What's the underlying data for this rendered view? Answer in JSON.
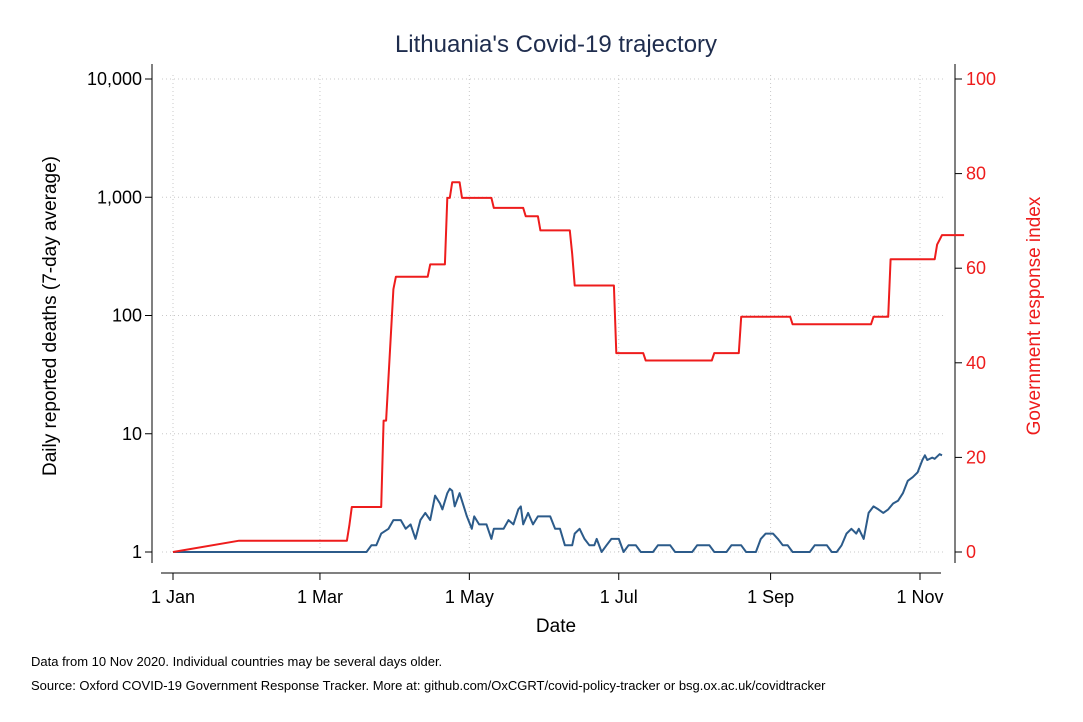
{
  "chart_data": {
    "type": "line",
    "title": "Lithuania's Covid-19 trajectory",
    "xlabel": "Date",
    "ylabel": "Daily reported deaths (7-day average)",
    "y2label": "Government response index",
    "x_ticks": [
      "1 Jan",
      "1 Mar",
      "1 May",
      "1 Jul",
      "1 Sep",
      "1 Nov"
    ],
    "y_ticks": [
      "1",
      "10",
      "100",
      "1,000",
      "10,000"
    ],
    "y2_ticks": [
      "0",
      "20",
      "40",
      "60",
      "80",
      "100"
    ],
    "xlim": [
      "2020-01-01",
      "2020-11-16"
    ],
    "ylim": [
      1,
      10000
    ],
    "ylog": true,
    "y2lim": [
      0,
      100
    ],
    "grid": true,
    "colors": {
      "deaths": "#2c5b8a",
      "response": "#ee1c1c",
      "title": "#1f2d4e"
    },
    "series": [
      {
        "axis": "left",
        "step": false,
        "points": [
          [
            "2020-01-01",
            1
          ],
          [
            "2020-03-20",
            1
          ],
          [
            "2020-03-22",
            1.14
          ],
          [
            "2020-03-24",
            1.14
          ],
          [
            "2020-03-26",
            1.43
          ],
          [
            "2020-03-29",
            1.57
          ],
          [
            "2020-03-31",
            1.86
          ],
          [
            "2020-04-03",
            1.86
          ],
          [
            "2020-04-05",
            1.57
          ],
          [
            "2020-04-07",
            1.71
          ],
          [
            "2020-04-09",
            1.29
          ],
          [
            "2020-04-11",
            1.86
          ],
          [
            "2020-04-13",
            2.14
          ],
          [
            "2020-04-15",
            1.86
          ],
          [
            "2020-04-17",
            3.0
          ],
          [
            "2020-04-19",
            2.57
          ],
          [
            "2020-04-20",
            2.29
          ],
          [
            "2020-04-22",
            3.14
          ],
          [
            "2020-04-23",
            3.43
          ],
          [
            "2020-04-24",
            3.29
          ],
          [
            "2020-04-25",
            2.43
          ],
          [
            "2020-04-27",
            3.14
          ],
          [
            "2020-04-28",
            2.71
          ],
          [
            "2020-04-30",
            2.0
          ],
          [
            "2020-05-02",
            1.57
          ],
          [
            "2020-05-03",
            2.0
          ],
          [
            "2020-05-05",
            1.71
          ],
          [
            "2020-05-08",
            1.71
          ],
          [
            "2020-05-10",
            1.29
          ],
          [
            "2020-05-11",
            1.57
          ],
          [
            "2020-05-15",
            1.57
          ],
          [
            "2020-05-17",
            1.86
          ],
          [
            "2020-05-19",
            1.71
          ],
          [
            "2020-05-21",
            2.29
          ],
          [
            "2020-05-22",
            2.43
          ],
          [
            "2020-05-23",
            1.71
          ],
          [
            "2020-05-25",
            2.14
          ],
          [
            "2020-05-27",
            1.71
          ],
          [
            "2020-05-29",
            2.0
          ],
          [
            "2020-06-03",
            2.0
          ],
          [
            "2020-06-05",
            1.57
          ],
          [
            "2020-06-07",
            1.57
          ],
          [
            "2020-06-09",
            1.14
          ],
          [
            "2020-06-12",
            1.14
          ],
          [
            "2020-06-13",
            1.43
          ],
          [
            "2020-06-15",
            1.57
          ],
          [
            "2020-06-17",
            1.29
          ],
          [
            "2020-06-19",
            1.14
          ],
          [
            "2020-06-21",
            1.14
          ],
          [
            "2020-06-22",
            1.29
          ],
          [
            "2020-06-24",
            1.0
          ],
          [
            "2020-06-26",
            1.14
          ],
          [
            "2020-06-28",
            1.29
          ],
          [
            "2020-07-01",
            1.29
          ],
          [
            "2020-07-03",
            1.0
          ],
          [
            "2020-07-05",
            1.14
          ],
          [
            "2020-07-08",
            1.14
          ],
          [
            "2020-07-10",
            1.0
          ],
          [
            "2020-07-15",
            1.0
          ],
          [
            "2020-07-17",
            1.14
          ],
          [
            "2020-07-22",
            1.14
          ],
          [
            "2020-07-24",
            1.0
          ],
          [
            "2020-07-31",
            1.0
          ],
          [
            "2020-08-02",
            1.14
          ],
          [
            "2020-08-07",
            1.14
          ],
          [
            "2020-08-09",
            1.0
          ],
          [
            "2020-08-14",
            1.0
          ],
          [
            "2020-08-16",
            1.14
          ],
          [
            "2020-08-20",
            1.14
          ],
          [
            "2020-08-22",
            1.0
          ],
          [
            "2020-08-26",
            1.0
          ],
          [
            "2020-08-28",
            1.29
          ],
          [
            "2020-08-30",
            1.43
          ],
          [
            "2020-09-02",
            1.43
          ],
          [
            "2020-09-04",
            1.29
          ],
          [
            "2020-09-06",
            1.14
          ],
          [
            "2020-09-08",
            1.14
          ],
          [
            "2020-09-10",
            1.0
          ],
          [
            "2020-09-17",
            1.0
          ],
          [
            "2020-09-19",
            1.14
          ],
          [
            "2020-09-24",
            1.14
          ],
          [
            "2020-09-26",
            1.0
          ],
          [
            "2020-09-28",
            1.0
          ],
          [
            "2020-09-30",
            1.14
          ],
          [
            "2020-10-02",
            1.43
          ],
          [
            "2020-10-04",
            1.57
          ],
          [
            "2020-10-06",
            1.43
          ],
          [
            "2020-10-07",
            1.57
          ],
          [
            "2020-10-09",
            1.29
          ],
          [
            "2020-10-11",
            2.14
          ],
          [
            "2020-10-13",
            2.43
          ],
          [
            "2020-10-15",
            2.29
          ],
          [
            "2020-10-17",
            2.14
          ],
          [
            "2020-10-19",
            2.29
          ],
          [
            "2020-10-21",
            2.57
          ],
          [
            "2020-10-23",
            2.71
          ],
          [
            "2020-10-25",
            3.14
          ],
          [
            "2020-10-27",
            4.0
          ],
          [
            "2020-10-29",
            4.29
          ],
          [
            "2020-10-31",
            4.71
          ],
          [
            "2020-11-02",
            6.0
          ],
          [
            "2020-11-03",
            6.57
          ],
          [
            "2020-11-04",
            6.0
          ],
          [
            "2020-11-06",
            6.29
          ],
          [
            "2020-11-07",
            6.14
          ],
          [
            "2020-11-09",
            6.71
          ],
          [
            "2020-11-10",
            6.57
          ]
        ]
      },
      {
        "axis": "right",
        "step": true,
        "points": [
          [
            "2020-01-01",
            0
          ],
          [
            "2020-01-28",
            2.38
          ],
          [
            "2020-03-12",
            2.38
          ],
          [
            "2020-03-13",
            5.56
          ],
          [
            "2020-03-14",
            9.52
          ],
          [
            "2020-03-26",
            9.52
          ],
          [
            "2020-03-27",
            27.78
          ],
          [
            "2020-03-28",
            27.78
          ],
          [
            "2020-03-31",
            55.56
          ],
          [
            "2020-04-01",
            58.2
          ],
          [
            "2020-04-14",
            58.2
          ],
          [
            "2020-04-15",
            60.8
          ],
          [
            "2020-04-21",
            60.8
          ],
          [
            "2020-04-22",
            74.87
          ],
          [
            "2020-04-23",
            74.87
          ],
          [
            "2020-04-24",
            78.17
          ],
          [
            "2020-04-27",
            78.17
          ],
          [
            "2020-04-28",
            74.87
          ],
          [
            "2020-05-10",
            74.87
          ],
          [
            "2020-05-11",
            72.75
          ],
          [
            "2020-05-23",
            72.75
          ],
          [
            "2020-05-24",
            71.0
          ],
          [
            "2020-05-29",
            71.0
          ],
          [
            "2020-05-30",
            68.0
          ],
          [
            "2020-06-11",
            68.0
          ],
          [
            "2020-06-12",
            63.0
          ],
          [
            "2020-06-13",
            56.35
          ],
          [
            "2020-06-29",
            56.35
          ],
          [
            "2020-06-30",
            42.06
          ],
          [
            "2020-07-11",
            42.06
          ],
          [
            "2020-07-12",
            40.48
          ],
          [
            "2020-08-08",
            40.48
          ],
          [
            "2020-08-09",
            42.06
          ],
          [
            "2020-08-19",
            42.06
          ],
          [
            "2020-08-20",
            49.73
          ],
          [
            "2020-09-09",
            49.73
          ],
          [
            "2020-09-10",
            48.15
          ],
          [
            "2020-10-12",
            48.15
          ],
          [
            "2020-10-13",
            49.73
          ],
          [
            "2020-10-19",
            49.73
          ],
          [
            "2020-10-20",
            61.91
          ],
          [
            "2020-11-07",
            61.91
          ],
          [
            "2020-11-08",
            65.0
          ],
          [
            "2020-11-09",
            66.0
          ],
          [
            "2020-11-10",
            67.0
          ],
          [
            "2020-11-12",
            67.0
          ],
          [
            "2020-11-19",
            67.0
          ]
        ]
      }
    ]
  },
  "footnotes": [
    "Data from 10 Nov 2020. Individual countries may be several days older.",
    "Source: Oxford COVID-19 Government Response Tracker. More at: github.com/OxCGRT/covid-policy-tracker or bsg.ox.ac.uk/covidtracker"
  ]
}
